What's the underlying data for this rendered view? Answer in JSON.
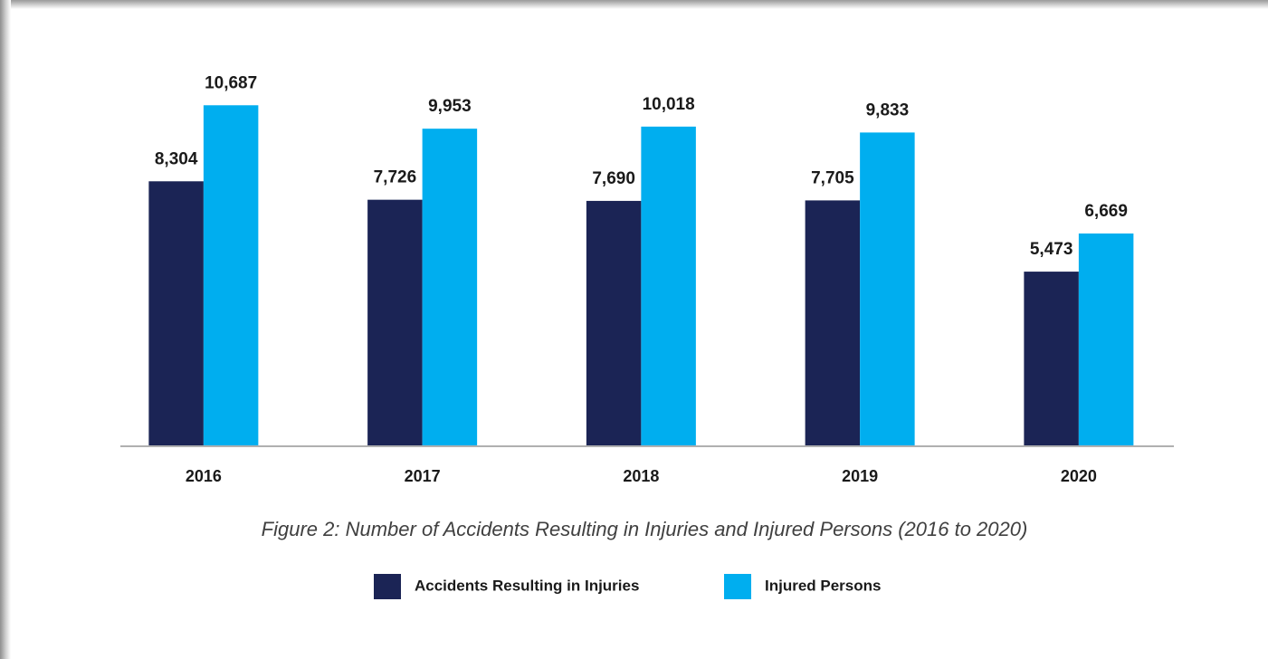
{
  "chart_data": {
    "type": "bar",
    "caption": "Figure 2: Number of Accidents Resulting in Injuries and Injured Persons (2016 to 2020)",
    "categories": [
      "2016",
      "2017",
      "2018",
      "2019",
      "2020"
    ],
    "series": [
      {
        "name": "Accidents Resulting in Injuries",
        "color": "#1b2455",
        "values": [
          8304,
          7726,
          7690,
          7705,
          5473
        ],
        "value_labels": [
          "8,304",
          "7,726",
          "7,690",
          "7,705",
          "5,473"
        ]
      },
      {
        "name": "Injured Persons",
        "color": "#00aeef",
        "values": [
          10687,
          9953,
          10018,
          9833,
          6669
        ],
        "value_labels": [
          "10,687",
          "9,953",
          "10,018",
          "9,833",
          "6,669"
        ]
      }
    ],
    "ylim": [
      0,
      12000
    ]
  }
}
